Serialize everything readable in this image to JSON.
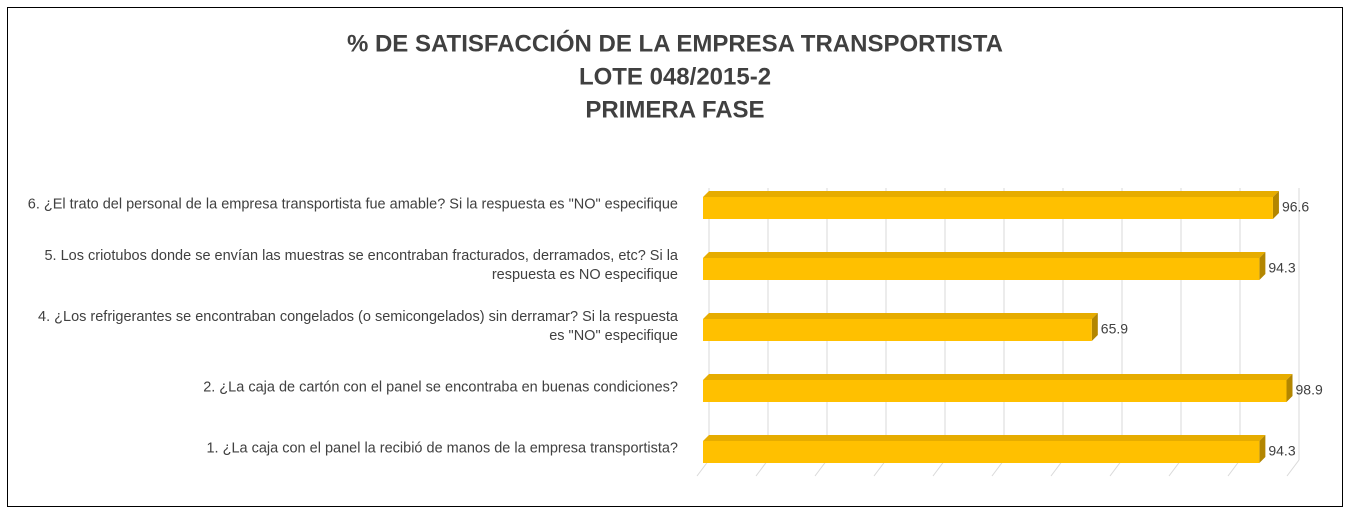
{
  "chart_data": {
    "type": "bar",
    "orientation": "horizontal",
    "title": [
      "% DE SATISFACCIÓN DE LA EMPRESA TRANSPORTISTA",
      "LOTE 048/2015-2",
      "PRIMERA FASE"
    ],
    "categories": [
      "6. ¿El trato del personal de la empresa transportista fue amable? Si la respuesta es \"NO\" especifique",
      "5. Los criotubos donde se envían las muestras se encontraban fracturados, derramados, etc? Si la respuesta es NO especifique",
      "4. ¿Los refrigerantes se encontraban congelados (o semicongelados) sin derramar? Si la respuesta es \"NO\" especifique",
      "2. ¿La caja de cartón con el panel se encontraba en buenas condiciones?",
      "1. ¿La caja con el panel la recibió de manos de la empresa transportista?"
    ],
    "values": [
      96.6,
      94.3,
      65.9,
      98.9,
      94.3
    ],
    "color": "#ffc000",
    "xlim": [
      0,
      100
    ],
    "xticks": [
      0,
      10,
      20,
      30,
      40,
      50,
      60,
      70,
      80,
      90,
      100
    ],
    "grid": true
  }
}
